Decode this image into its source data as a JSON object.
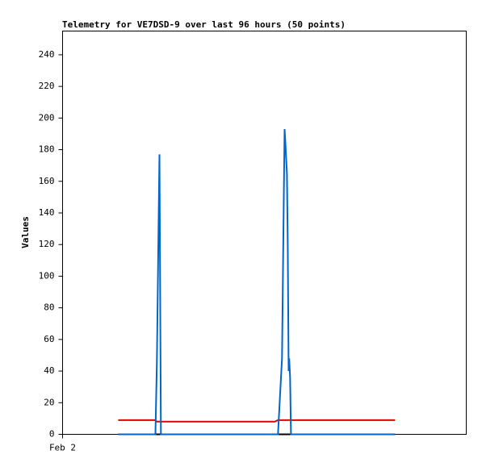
{
  "chart_data": {
    "type": "line",
    "title": "Telemetry for VE7DSD-9 over last 96 hours (50 points)",
    "ylabel": "Values",
    "x": [
      19.3,
      32.2,
      32.7,
      33.3,
      33.6,
      34.1,
      62.4,
      73.6,
      74.7,
      76.1,
      76.7,
      77.0,
      77.2,
      77.5,
      77.8,
      78.1,
      78.4,
      78.6,
      78.9,
      79.2,
      96.0,
      115.3
    ],
    "series": [
      {
        "color": "#0066cc",
        "values": [
          0,
          0,
          45,
          132,
          177,
          0,
          0,
          0,
          0,
          48,
          145,
          193,
          187,
          176,
          165,
          120,
          40,
          48,
          36,
          0,
          0,
          0
        ]
      },
      {
        "color": "#e00000",
        "values": [
          9,
          9,
          8,
          8,
          8,
          8,
          8,
          8,
          9,
          9,
          9,
          9,
          9,
          9,
          9,
          9,
          9,
          9,
          9,
          9,
          9,
          9
        ]
      },
      {
        "color": "#000000",
        "values": [
          0,
          0,
          0,
          0,
          0,
          0,
          0,
          0,
          0,
          0,
          0,
          0,
          0,
          0,
          0,
          0,
          0,
          0,
          0,
          0,
          0,
          0
        ]
      }
    ],
    "xlim": [
      0,
      140
    ],
    "xticks": [
      {
        "value": 0,
        "label": "Feb 2"
      }
    ],
    "ylim": [
      0,
      255
    ],
    "yticks": [
      0,
      20,
      40,
      60,
      80,
      100,
      120,
      140,
      160,
      180,
      200,
      220,
      240
    ],
    "grid": false
  }
}
